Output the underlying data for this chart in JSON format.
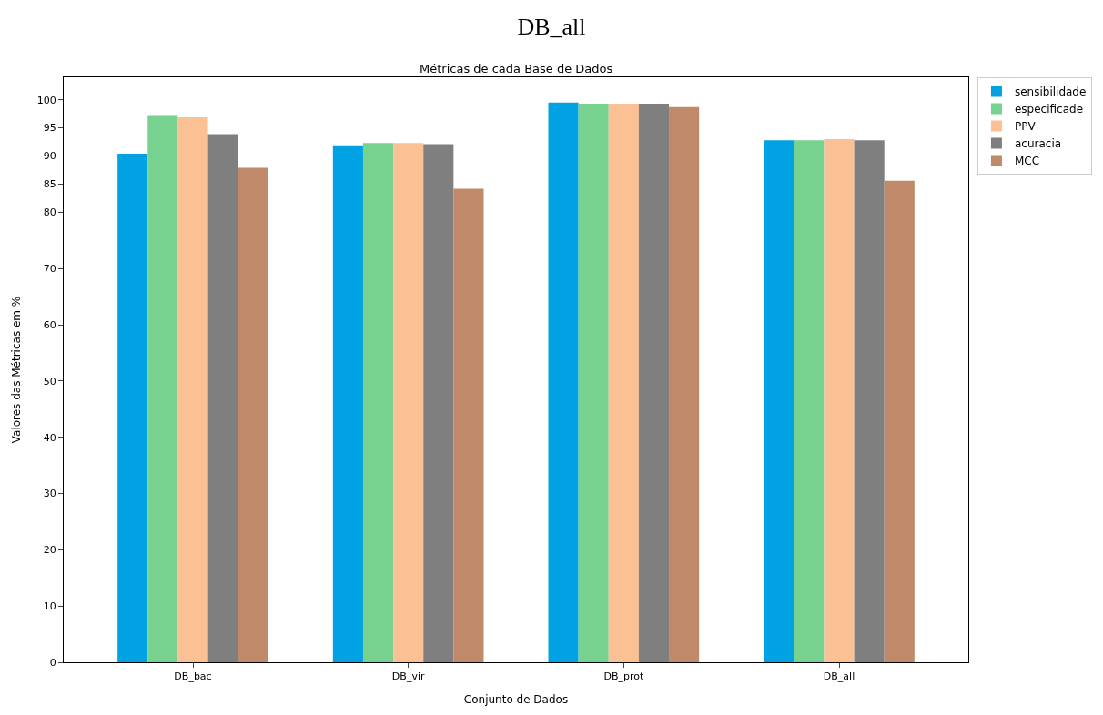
{
  "chart_data": {
    "type": "bar",
    "title": "DB_all",
    "subtitle": "Métricas de cada Base de Dados",
    "xlabel": "Conjunto de Dados",
    "ylabel": "Valores das Métricas em %",
    "categories": [
      "DB_bac",
      "DB_vir",
      "DB_prot",
      "DB_all"
    ],
    "series": [
      {
        "name": "sensibilidade",
        "color": "#00a2e3",
        "values": [
          90.4,
          91.9,
          99.5,
          92.8
        ]
      },
      {
        "name": "especificade",
        "color": "#77d18f",
        "values": [
          97.3,
          92.3,
          99.3,
          92.8
        ]
      },
      {
        "name": "PPV",
        "color": "#fbc195",
        "values": [
          96.9,
          92.3,
          99.3,
          93.0
        ]
      },
      {
        "name": "acuracia",
        "color": "#7f7f7f",
        "values": [
          93.9,
          92.1,
          99.3,
          92.8
        ]
      },
      {
        "name": "MCC",
        "color": "#c08a6a",
        "values": [
          87.9,
          84.2,
          98.7,
          85.6
        ]
      }
    ],
    "ylim": [
      0,
      104
    ],
    "yticks": [
      0,
      10,
      20,
      30,
      40,
      50,
      60,
      70,
      80,
      85,
      90,
      95,
      100
    ],
    "legend": "top right"
  }
}
